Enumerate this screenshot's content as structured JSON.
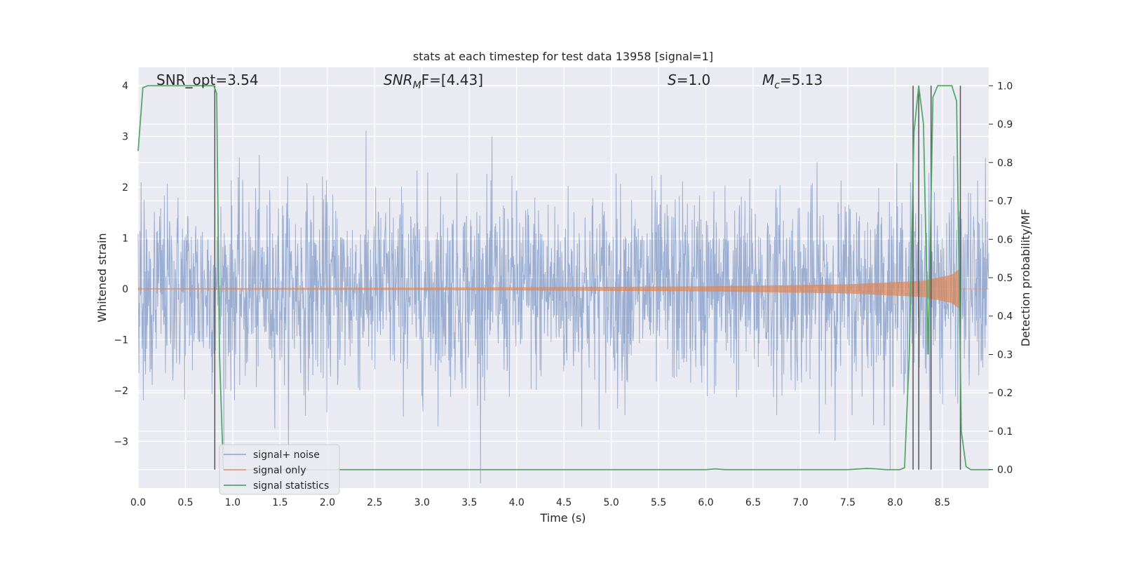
{
  "chart_data": {
    "type": "line",
    "title": "stats at each timestep for test data 13958 [signal=1]",
    "xlabel": "Time (s)",
    "ylabel": "Whitened strain",
    "y2label": "Detection probability/MF",
    "xlim": [
      0.0,
      8.99
    ],
    "ylim": [
      -3.92,
      4.36
    ],
    "y2lim": [
      -0.048,
      1.048
    ],
    "x_ticks": [
      "0.0",
      "0.5",
      "1.0",
      "1.5",
      "2.0",
      "2.5",
      "3.0",
      "3.5",
      "4.0",
      "4.5",
      "5.0",
      "5.5",
      "6.0",
      "6.5",
      "7.0",
      "7.5",
      "8.0",
      "8.5"
    ],
    "y_ticks": [
      "−3",
      "−2",
      "−1",
      "0",
      "1",
      "2",
      "3",
      "4"
    ],
    "y2_ticks": [
      "0.0",
      "0.1",
      "0.2",
      "0.3",
      "0.4",
      "0.5",
      "0.6",
      "0.7",
      "0.8",
      "0.9",
      "1.0"
    ],
    "grid": true,
    "legend_position": "lower-left",
    "annotations": [
      {
        "id": "snr_opt",
        "pre": "SNR_opt=3.54",
        "italic": "",
        "sub": "",
        "post": ""
      },
      {
        "id": "snr_mf",
        "pre": "",
        "italic": "SNR",
        "sub": "M",
        "post": "F=[4.43]"
      },
      {
        "id": "s",
        "pre": "",
        "italic": "S",
        "sub": "",
        "post": "=1.0"
      },
      {
        "id": "mc",
        "pre": "",
        "italic": "M",
        "sub": "c",
        "post": "=5.13"
      }
    ],
    "series": [
      {
        "name": "signal+ noise",
        "color": "#4c72b0",
        "opacity": 0.5,
        "noise_std": 0.95,
        "samples": 2304
      },
      {
        "name": "signal only",
        "color": "#dd8452",
        "opacity": 0.7,
        "envelope": [
          [
            0.0,
            0.01
          ],
          [
            2.0,
            0.02
          ],
          [
            4.0,
            0.03
          ],
          [
            6.0,
            0.05
          ],
          [
            7.5,
            0.09
          ],
          [
            8.3,
            0.16
          ],
          [
            8.6,
            0.28
          ],
          [
            8.67,
            0.38
          ],
          [
            8.69,
            0.0
          ]
        ]
      },
      {
        "name": "signal statistics",
        "color": "#55a868",
        "x": [
          0.0,
          0.05,
          0.1,
          0.15,
          0.2,
          0.25,
          0.3,
          0.35,
          0.4,
          0.45,
          0.5,
          0.55,
          0.6,
          0.65,
          0.7,
          0.75,
          0.8,
          0.83,
          0.86,
          0.9,
          0.95,
          1.0,
          1.5,
          2.0,
          2.5,
          3.0,
          3.5,
          4.0,
          4.5,
          5.0,
          5.5,
          6.0,
          6.1,
          6.2,
          7.0,
          7.5,
          7.7,
          7.8,
          7.9,
          8.0,
          8.05,
          8.1,
          8.15,
          8.2,
          8.25,
          8.3,
          8.35,
          8.4,
          8.45,
          8.5,
          8.55,
          8.6,
          8.65,
          8.7,
          8.75,
          8.8,
          8.85,
          8.9,
          8.95,
          9.0
        ],
        "y": [
          0.83,
          0.995,
          1.0,
          1.0,
          1.0,
          1.0,
          1.0,
          1.0,
          1.0,
          1.0,
          1.0,
          1.0,
          1.0,
          1.0,
          1.0,
          1.0,
          1.0,
          0.98,
          0.3,
          0.0,
          0.0,
          0.0,
          0.0,
          0.0,
          0.0,
          0.0,
          0.0,
          0.0,
          0.0,
          0.0,
          0.0,
          0.0,
          0.002,
          0.0,
          0.0,
          0.0,
          0.003,
          0.002,
          0.0,
          0.0,
          0.0,
          0.005,
          0.3,
          0.88,
          1.0,
          0.9,
          0.3,
          0.97,
          1.0,
          1.0,
          1.0,
          1.0,
          0.96,
          0.1,
          0.008,
          0.0,
          0.0,
          0.0,
          0.0,
          0.0
        ]
      }
    ],
    "vlines": [
      0.81,
      8.19,
      8.25,
      8.38,
      8.69
    ]
  }
}
